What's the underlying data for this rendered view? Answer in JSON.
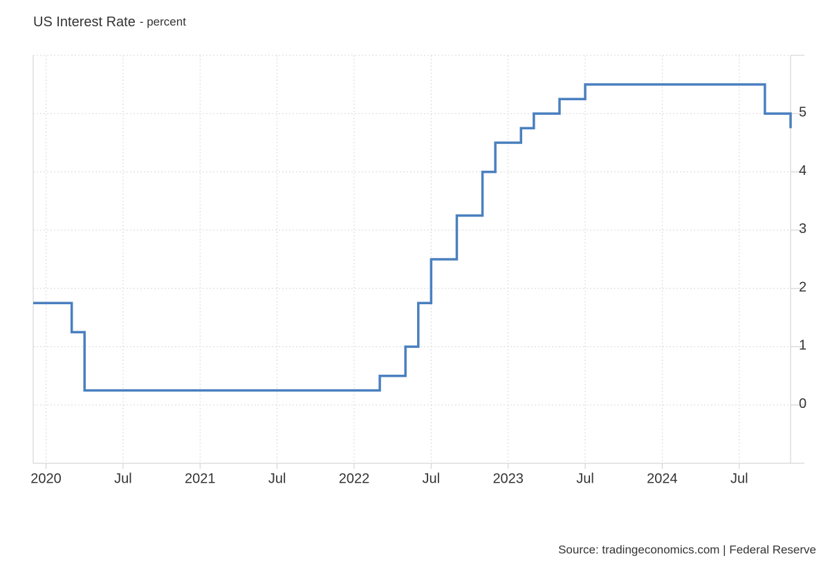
{
  "chart_data": {
    "type": "step-line",
    "title": "US Interest Rate",
    "subtitle": "- percent",
    "source": "Source: tradingeconomics.com | Federal Reserve",
    "x": [
      "2019-12",
      "2020-03",
      "2020-04",
      "2022-03",
      "2022-05",
      "2022-06",
      "2022-07",
      "2022-09",
      "2022-11",
      "2022-12",
      "2023-02",
      "2023-03",
      "2023-05",
      "2023-07",
      "2024-09",
      "2024-11"
    ],
    "values": [
      1.75,
      1.25,
      0.25,
      0.5,
      1.0,
      1.75,
      2.5,
      3.25,
      4.0,
      4.5,
      4.75,
      5.0,
      5.25,
      5.5,
      5.0,
      4.75
    ],
    "color": "#4a80bf",
    "xlim": [
      "2019-12",
      "2024-11"
    ],
    "xticks": [
      {
        "value": "2020-01",
        "label": "2020"
      },
      {
        "value": "2020-07",
        "label": "Jul"
      },
      {
        "value": "2021-01",
        "label": "2021"
      },
      {
        "value": "2021-07",
        "label": "Jul"
      },
      {
        "value": "2022-01",
        "label": "2022"
      },
      {
        "value": "2022-07",
        "label": "Jul"
      },
      {
        "value": "2023-01",
        "label": "2023"
      },
      {
        "value": "2023-07",
        "label": "Jul"
      },
      {
        "value": "2024-01",
        "label": "2024"
      },
      {
        "value": "2024-07",
        "label": "Jul"
      }
    ],
    "ylim": [
      -1,
      6
    ],
    "yticks": [
      0,
      1,
      2,
      3,
      4,
      5
    ],
    "grid": true
  }
}
